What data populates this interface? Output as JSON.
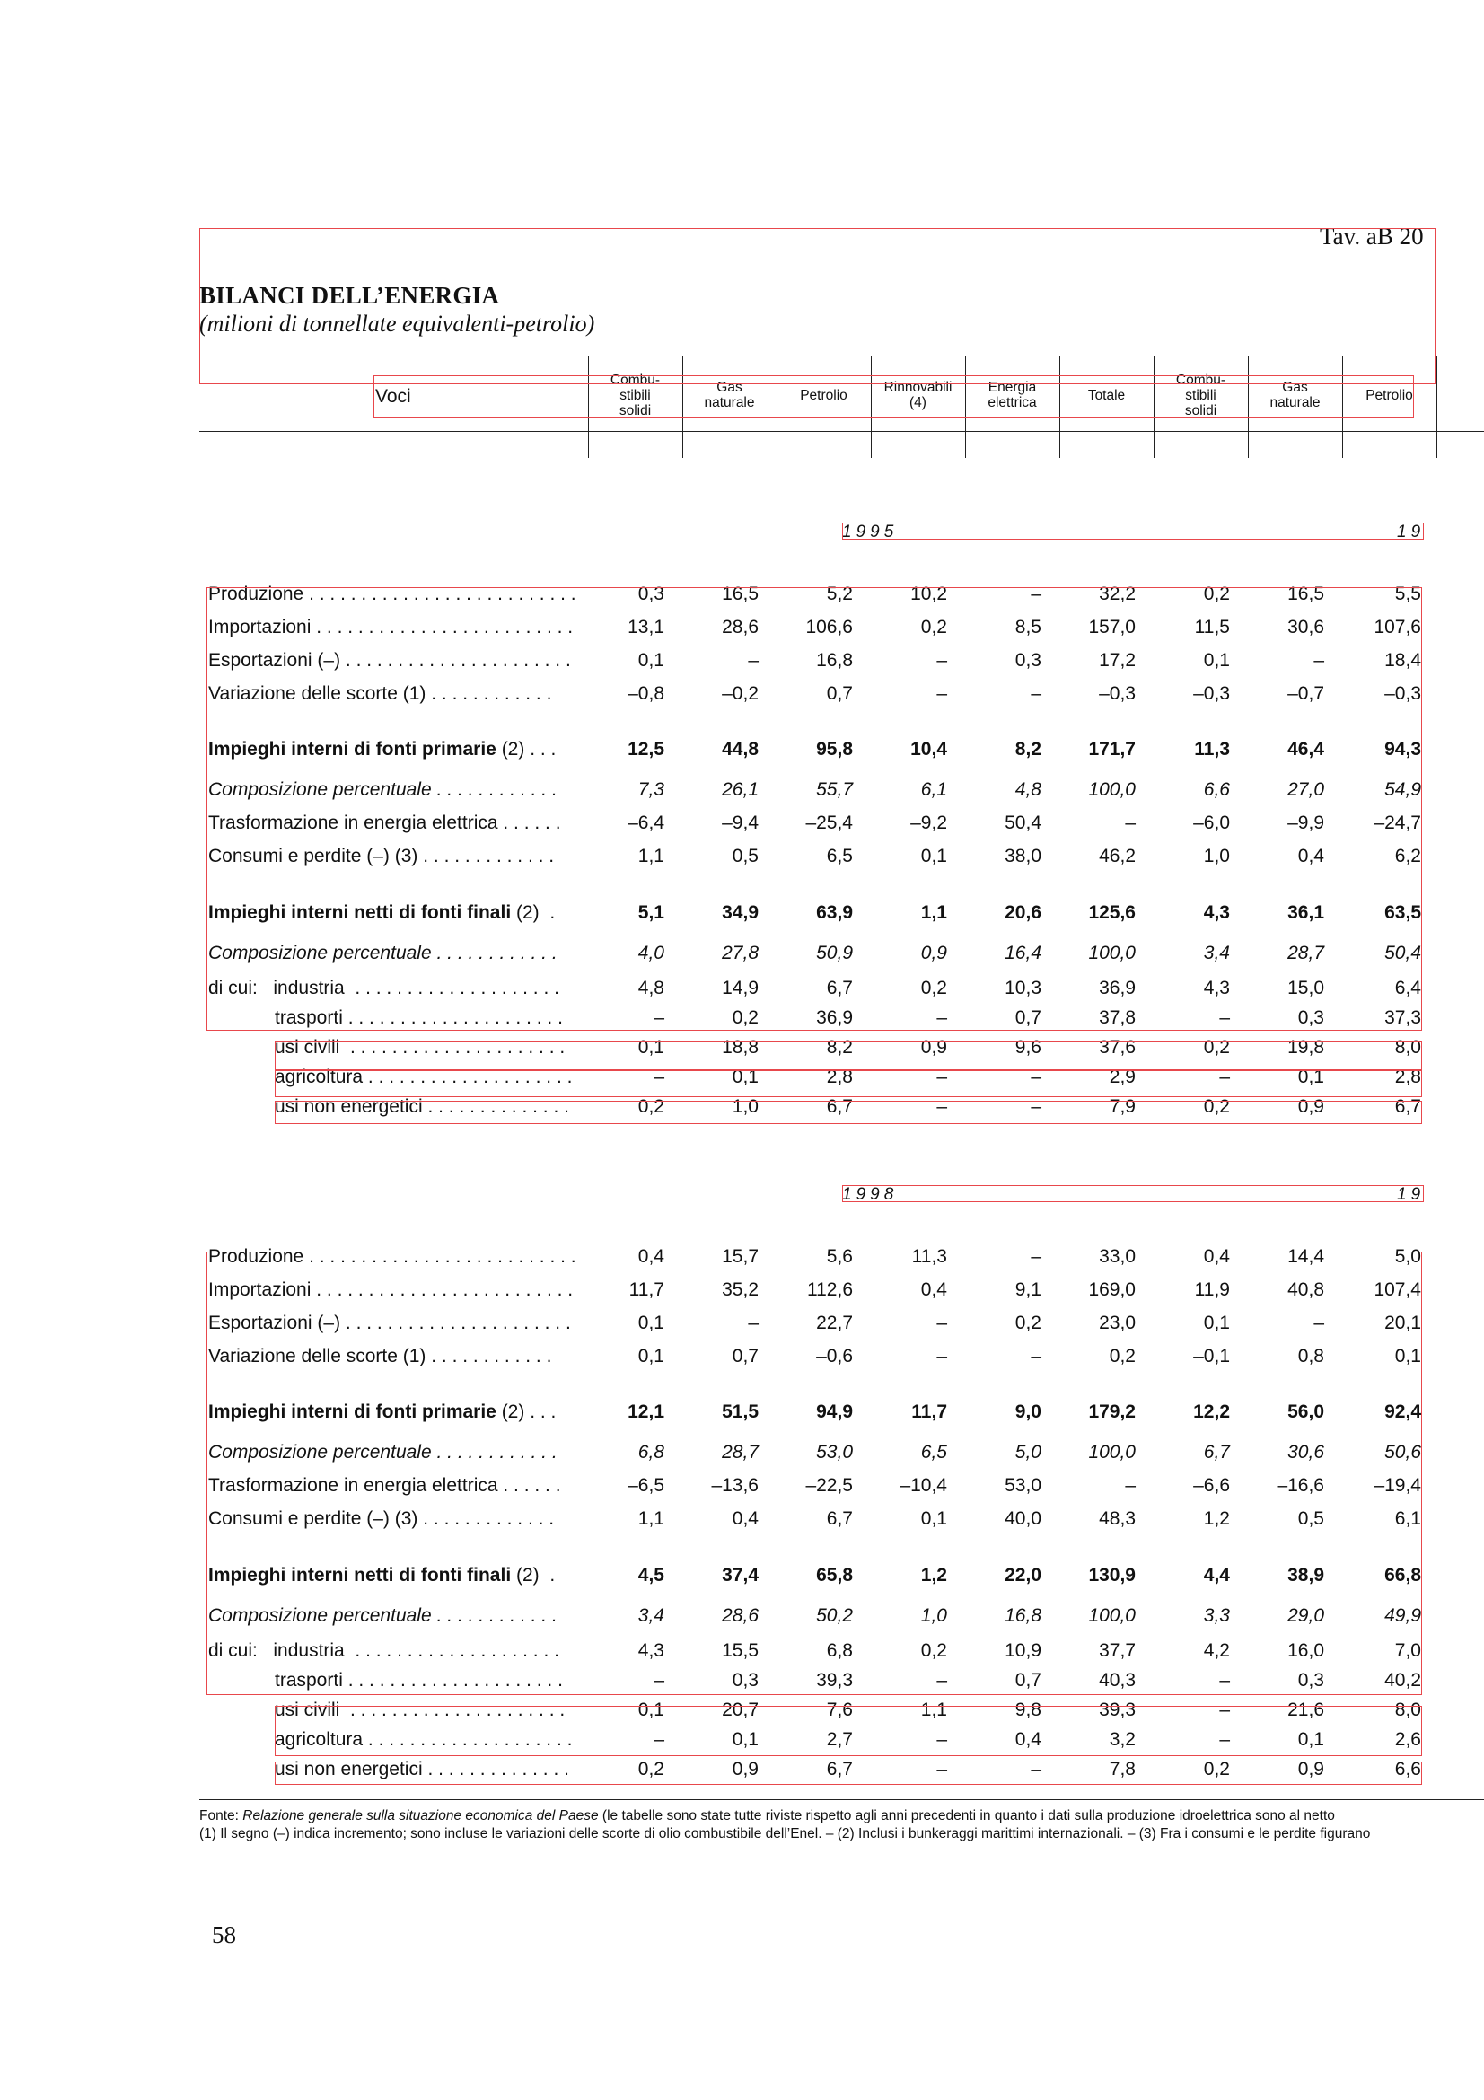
{
  "header": {
    "tav": "Tav. aB  20",
    "title": "BILANCI DELL’ENERGIA",
    "subtitle": "(milioni di tonnellate equivalenti-petrolio)"
  },
  "columns": {
    "voci": "Voci",
    "headers": [
      "Combu-\nstibili\nsolidi",
      "Gas\nnaturale",
      "Petrolio",
      "Rinnovabili\n(4)",
      "Energia\nelettrica",
      "Totale",
      "Combu-\nstibili\nsolidi",
      "Gas\nnaturale",
      "Petrolio"
    ]
  },
  "blocks": [
    {
      "year_left": "1995",
      "year_right": "19",
      "rows": [
        {
          "label": "Produzione",
          "dots": " . . . . . . . . . . . . . . . . . . . . . . . . . .",
          "values": [
            "0,3",
            "16,5",
            "5,2",
            "10,2",
            "–",
            "32,2",
            "0,2",
            "16,5",
            "5,5"
          ]
        },
        {
          "label": "Importazioni",
          "dots": " . . . . . . . . . . . . . . . . . . . . . . . . .",
          "values": [
            "13,1",
            "28,6",
            "106,6",
            "0,2",
            "8,5",
            "157,0",
            "11,5",
            "30,6",
            "107,6"
          ]
        },
        {
          "label": "Esportazioni (–)",
          "dots": " . . . . . . . . . . . . . . . . . . . . . .",
          "values": [
            "0,1",
            "–",
            "16,8",
            "–",
            "0,3",
            "17,2",
            "0,1",
            "–",
            "18,4"
          ]
        },
        {
          "label": "Variazione delle scorte (1)",
          "dots": " . . . . . . . . . . . .",
          "values": [
            "–0,8",
            "–0,2",
            "0,7",
            "–",
            "–",
            "–0,3",
            "–0,3",
            "–0,7",
            "–0,3"
          ]
        },
        {
          "label": "Impieghi interni di fonti primarie",
          "tail": " (2) . . .",
          "style": "bold",
          "values": [
            "12,5",
            "44,8",
            "95,8",
            "10,4",
            "8,2",
            "171,7",
            "11,3",
            "46,4",
            "94,3"
          ]
        },
        {
          "label": "Composizione percentuale",
          "dots": " . . . . . . . . . . . .",
          "style": "italic",
          "values": [
            "7,3",
            "26,1",
            "55,7",
            "6,1",
            "4,8",
            "100,0",
            "6,6",
            "27,0",
            "54,9"
          ]
        },
        {
          "label": "Trasformazione in energia elettrica",
          "dots": " . . . . . .",
          "values": [
            "–6,4",
            "–9,4",
            "–25,4",
            "–9,2",
            "50,4",
            "–",
            "–6,0",
            "–9,9",
            "–24,7"
          ]
        },
        {
          "label": "Consumi e perdite (–) (3)",
          "dots": " . . . . . . . . . . . . .",
          "values": [
            "1,1",
            "0,5",
            "6,5",
            "0,1",
            "38,0",
            "46,2",
            "1,0",
            "0,4",
            "6,2"
          ]
        },
        {
          "label": "Impieghi interni netti di fonti finali",
          "tail": " (2)  .",
          "style": "bold",
          "values": [
            "5,1",
            "34,9",
            "63,9",
            "1,1",
            "20,6",
            "125,6",
            "4,3",
            "36,1",
            "63,5"
          ]
        },
        {
          "label": "Composizione percentuale",
          "dots": " . . . . . . . . . . . .",
          "style": "italic",
          "values": [
            "4,0",
            "27,8",
            "50,9",
            "0,9",
            "16,4",
            "100,0",
            "3,4",
            "28,7",
            "50,4"
          ]
        },
        {
          "label": "di cui:   industria",
          "dots": "  . . . . . . . . . . . . . . . . . . . .",
          "values": [
            "4,8",
            "14,9",
            "6,7",
            "0,2",
            "10,3",
            "36,9",
            "4,3",
            "15,0",
            "6,4"
          ]
        },
        {
          "label": "trasporti",
          "dots": " . . . . . . . . . . . . . . . . . . . . .",
          "indent": true,
          "values": [
            "–",
            "0,2",
            "36,9",
            "–",
            "0,7",
            "37,8",
            "–",
            "0,3",
            "37,3"
          ]
        },
        {
          "label": "usi civili",
          "dots": "  . . . . . . . . . . . . . . . . . . . . .",
          "indent": true,
          "values": [
            "0,1",
            "18,8",
            "8,2",
            "0,9",
            "9,6",
            "37,6",
            "0,2",
            "19,8",
            "8,0"
          ]
        },
        {
          "label": "agricoltura",
          "dots": " . . . . . . . . . . . . . . . . . . . .",
          "indent": true,
          "values": [
            "–",
            "0,1",
            "2,8",
            "–",
            "–",
            "2,9",
            "–",
            "0,1",
            "2,8"
          ]
        },
        {
          "label": "usi non energetici",
          "dots": " . . . . . . . . . . . . . .",
          "indent": true,
          "values": [
            "0,2",
            "1,0",
            "6,7",
            "–",
            "–",
            "7,9",
            "0,2",
            "0,9",
            "6,7"
          ]
        }
      ]
    },
    {
      "year_left": "1998",
      "year_right": "19",
      "rows": [
        {
          "label": "Produzione",
          "dots": " . . . . . . . . . . . . . . . . . . . . . . . . . .",
          "values": [
            "0,4",
            "15,7",
            "5,6",
            "11,3",
            "–",
            "33,0",
            "0,4",
            "14,4",
            "5,0"
          ]
        },
        {
          "label": "Importazioni",
          "dots": " . . . . . . . . . . . . . . . . . . . . . . . . .",
          "values": [
            "11,7",
            "35,2",
            "112,6",
            "0,4",
            "9,1",
            "169,0",
            "11,9",
            "40,8",
            "107,4"
          ]
        },
        {
          "label": "Esportazioni (–)",
          "dots": " . . . . . . . . . . . . . . . . . . . . . .",
          "values": [
            "0,1",
            "–",
            "22,7",
            "–",
            "0,2",
            "23,0",
            "0,1",
            "–",
            "20,1"
          ]
        },
        {
          "label": "Variazione delle scorte (1)",
          "dots": " . . . . . . . . . . . .",
          "values": [
            "0,1",
            "0,7",
            "–0,6",
            "–",
            "–",
            "0,2",
            "–0,1",
            "0,8",
            "0,1"
          ]
        },
        {
          "label": "Impieghi interni di fonti primarie",
          "tail": " (2) . . .",
          "style": "bold",
          "values": [
            "12,1",
            "51,5",
            "94,9",
            "11,7",
            "9,0",
            "179,2",
            "12,2",
            "56,0",
            "92,4"
          ]
        },
        {
          "label": "Composizione percentuale",
          "dots": " . . . . . . . . . . . .",
          "style": "italic",
          "values": [
            "6,8",
            "28,7",
            "53,0",
            "6,5",
            "5,0",
            "100,0",
            "6,7",
            "30,6",
            "50,6"
          ]
        },
        {
          "label": "Trasformazione in energia elettrica",
          "dots": " . . . . . .",
          "values": [
            "–6,5",
            "–13,6",
            "–22,5",
            "–10,4",
            "53,0",
            "–",
            "–6,6",
            "–16,6",
            "–19,4"
          ]
        },
        {
          "label": "Consumi e perdite (–) (3)",
          "dots": " . . . . . . . . . . . . .",
          "values": [
            "1,1",
            "0,4",
            "6,7",
            "0,1",
            "40,0",
            "48,3",
            "1,2",
            "0,5",
            "6,1"
          ]
        },
        {
          "label": "Impieghi interni netti di fonti finali",
          "tail": " (2)  .",
          "style": "bold",
          "values": [
            "4,5",
            "37,4",
            "65,8",
            "1,2",
            "22,0",
            "130,9",
            "4,4",
            "38,9",
            "66,8"
          ]
        },
        {
          "label": "Composizione percentuale",
          "dots": " . . . . . . . . . . . .",
          "style": "italic",
          "values": [
            "3,4",
            "28,6",
            "50,2",
            "1,0",
            "16,8",
            "100,0",
            "3,3",
            "29,0",
            "49,9"
          ]
        },
        {
          "label": "di cui:   industria",
          "dots": "  . . . . . . . . . . . . . . . . . . . .",
          "values": [
            "4,3",
            "15,5",
            "6,8",
            "0,2",
            "10,9",
            "37,7",
            "4,2",
            "16,0",
            "7,0"
          ]
        },
        {
          "label": "trasporti",
          "dots": " . . . . . . . . . . . . . . . . . . . . .",
          "indent": true,
          "values": [
            "–",
            "0,3",
            "39,3",
            "–",
            "0,7",
            "40,3",
            "–",
            "0,3",
            "40,2"
          ]
        },
        {
          "label": "usi civili",
          "dots": "  . . . . . . . . . . . . . . . . . . . . .",
          "indent": true,
          "values": [
            "0,1",
            "20,7",
            "7,6",
            "1,1",
            "9,8",
            "39,3",
            "–",
            "21,6",
            "8,0"
          ]
        },
        {
          "label": "agricoltura",
          "dots": " . . . . . . . . . . . . . . . . . . . .",
          "indent": true,
          "values": [
            "–",
            "0,1",
            "2,7",
            "–",
            "0,4",
            "3,2",
            "–",
            "0,1",
            "2,6"
          ]
        },
        {
          "label": "usi non energetici",
          "dots": " . . . . . . . . . . . . . .",
          "indent": true,
          "values": [
            "0,2",
            "0,9",
            "6,7",
            "–",
            "–",
            "7,8",
            "0,2",
            "0,9",
            "6,6"
          ]
        }
      ]
    }
  ],
  "footnotes": {
    "fonte_prefix": "Fonte: ",
    "fonte_title": "Relazione generale sulla situazione economica del Paese",
    "fonte_rest": " (le tabelle sono state tutte riviste rispetto agli anni precedenti in quanto i dati sulla produzione idroelettrica sono al netto",
    "line2": "(1) Il segno (–) indica incremento; sono incluse le variazioni delle scorte di olio combustibile dell’Enel. – (2) Inclusi i bunkeraggi marittimi internazionali. – (3) Fra i consumi e le perdite figurano"
  },
  "page_number": "58",
  "colors": {
    "annotation_box": "#e8474c",
    "rule": "#222222"
  }
}
